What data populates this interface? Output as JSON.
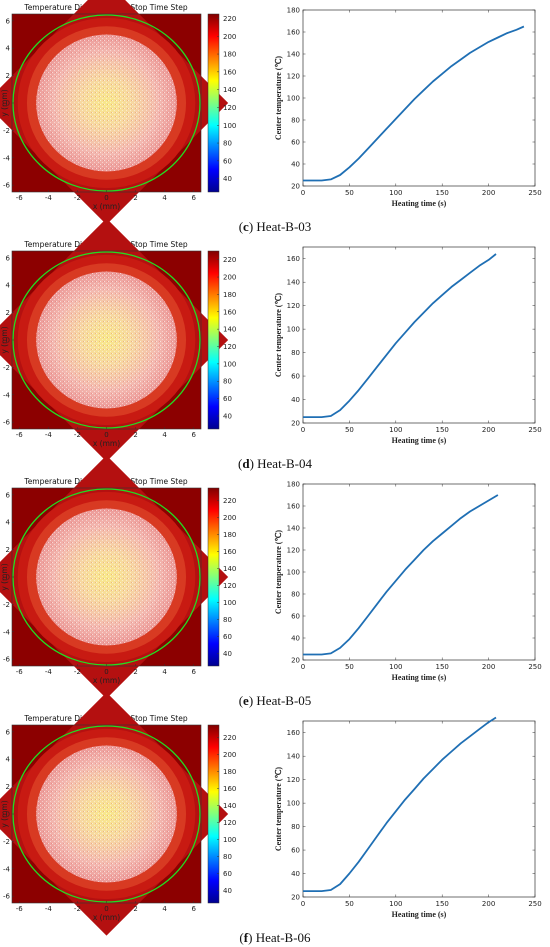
{
  "panels": [
    {
      "caption_letter": "c",
      "caption_text": " Heat-B-03",
      "heatmap": {
        "title": "Temperature Distribution at Stop Time Step",
        "xlabel": "x (mm)",
        "ylabel": "y (mm)",
        "xticks": [
          "-6",
          "-4",
          "-2",
          "0",
          "2",
          "4",
          "6"
        ],
        "yticks": [
          "6",
          "4",
          "2",
          "0",
          "-2",
          "-4",
          "-6"
        ],
        "colorbar_ticks": [
          "220",
          "200",
          "180",
          "160",
          "140",
          "120",
          "100",
          "80",
          "60",
          "40"
        ]
      },
      "curve": {
        "xlabel": "Heating time (s)",
        "ylabel": "Center temperature (℃)",
        "xticks": [
          "0",
          "50",
          "100",
          "150",
          "200",
          "250"
        ],
        "yticks": [
          "20",
          "40",
          "60",
          "80",
          "100",
          "120",
          "140",
          "160",
          "180"
        ]
      }
    },
    {
      "caption_letter": "d",
      "caption_text": " Heat-B-04",
      "heatmap": {
        "title": "Temperature Distribution at Stop Time Step",
        "xlabel": "x (mm)",
        "ylabel": "y (mm)",
        "xticks": [
          "-6",
          "-4",
          "-2",
          "0",
          "2",
          "4",
          "6"
        ],
        "yticks": [
          "6",
          "4",
          "2",
          "0",
          "-2",
          "-4",
          "-6"
        ],
        "colorbar_ticks": [
          "220",
          "200",
          "180",
          "160",
          "140",
          "120",
          "100",
          "80",
          "60",
          "40"
        ]
      },
      "curve": {
        "xlabel": "Heating time (s)",
        "ylabel": "Center temperature (℃)",
        "xticks": [
          "0",
          "50",
          "100",
          "150",
          "200",
          "250"
        ],
        "yticks": [
          "20",
          "40",
          "60",
          "80",
          "100",
          "120",
          "140",
          "160"
        ]
      }
    },
    {
      "caption_letter": "e",
      "caption_text": " Heat-B-05",
      "heatmap": {
        "title": "Temperature Distribution at Stop Time Step",
        "xlabel": "x (mm)",
        "ylabel": "y (mm)",
        "xticks": [
          "-6",
          "-4",
          "-2",
          "0",
          "2",
          "4",
          "6"
        ],
        "yticks": [
          "6",
          "4",
          "2",
          "0",
          "-2",
          "-4",
          "-6"
        ],
        "colorbar_ticks": [
          "220",
          "200",
          "180",
          "160",
          "140",
          "120",
          "100",
          "80",
          "60",
          "40"
        ]
      },
      "curve": {
        "xlabel": "Heating time (s)",
        "ylabel": "Center temperature (℃)",
        "xticks": [
          "0",
          "50",
          "100",
          "150",
          "200",
          "250"
        ],
        "yticks": [
          "20",
          "40",
          "60",
          "80",
          "100",
          "120",
          "140",
          "160",
          "180"
        ]
      }
    },
    {
      "caption_letter": "f",
      "caption_text": " Heat-B-06",
      "heatmap": {
        "title": "Temperature Distribution at Stop Time Step",
        "xlabel": "x (mm)",
        "ylabel": "y (mm)",
        "xticks": [
          "-6",
          "-4",
          "-2",
          "0",
          "2",
          "4",
          "6"
        ],
        "yticks": [
          "6",
          "4",
          "2",
          "0",
          "-2",
          "-4",
          "-6"
        ],
        "colorbar_ticks": [
          "220",
          "200",
          "180",
          "160",
          "140",
          "120",
          "100",
          "80",
          "60",
          "40"
        ]
      },
      "curve": {
        "xlabel": "Heating time (s)",
        "ylabel": "Center temperature (℃)",
        "xticks": [
          "0",
          "50",
          "100",
          "150",
          "200",
          "250"
        ],
        "yticks": [
          "20",
          "40",
          "60",
          "80",
          "100",
          "120",
          "140",
          "160"
        ]
      }
    }
  ],
  "chart_data": [
    {
      "type": "heatmap",
      "title": "Temperature Distribution at Stop Time Step",
      "xlabel": "x (mm)",
      "ylabel": "y (mm)",
      "xlim": [
        -6.5,
        6.5
      ],
      "ylim": [
        -6.5,
        6.5
      ],
      "colorbar_range": [
        25,
        225
      ],
      "colormap": "jet",
      "boundary_circle_color": "#22dd22"
    },
    {
      "type": "line",
      "xlabel": "Heating time (s)",
      "ylabel": "Center temperature (℃)",
      "xlim": [
        0,
        250
      ],
      "ylim": [
        20,
        180
      ],
      "line_color": "#1f6fb4",
      "x": [
        0,
        10,
        20,
        30,
        40,
        50,
        60,
        70,
        80,
        90,
        100,
        110,
        120,
        130,
        140,
        150,
        160,
        170,
        180,
        190,
        200,
        210,
        220,
        230,
        238
      ],
      "y": [
        25,
        25,
        25,
        26,
        30,
        37,
        45,
        54,
        63,
        72,
        81,
        90,
        99,
        107,
        115,
        122,
        129,
        135,
        141,
        146,
        151,
        155,
        159,
        162,
        165
      ]
    },
    {
      "type": "heatmap",
      "title": "Temperature Distribution at Stop Time Step",
      "xlabel": "x (mm)",
      "ylabel": "y (mm)",
      "xlim": [
        -6.5,
        6.5
      ],
      "ylim": [
        -6.5,
        6.5
      ],
      "colorbar_range": [
        25,
        230
      ],
      "colormap": "jet",
      "boundary_circle_color": "#22dd22"
    },
    {
      "type": "line",
      "xlabel": "Heating time (s)",
      "ylabel": "Center temperature (℃)",
      "xlim": [
        0,
        250
      ],
      "ylim": [
        20,
        170
      ],
      "line_color": "#1f6fb4",
      "x": [
        0,
        10,
        20,
        30,
        40,
        50,
        60,
        70,
        80,
        90,
        100,
        110,
        120,
        130,
        140,
        150,
        160,
        170,
        180,
        190,
        200,
        208
      ],
      "y": [
        25,
        25,
        25,
        26,
        31,
        39,
        48,
        58,
        68,
        78,
        88,
        97,
        106,
        114,
        122,
        129,
        136,
        142,
        148,
        154,
        159,
        164
      ]
    },
    {
      "type": "heatmap",
      "title": "Temperature Distribution at Stop Time Step",
      "xlabel": "x (mm)",
      "ylabel": "y (mm)",
      "xlim": [
        -6.5,
        6.5
      ],
      "ylim": [
        -6.5,
        6.5
      ],
      "colorbar_range": [
        25,
        235
      ],
      "colormap": "jet",
      "boundary_circle_color": "#22dd22"
    },
    {
      "type": "line",
      "xlabel": "Heating time (s)",
      "ylabel": "Center temperature (℃)",
      "xlim": [
        0,
        250
      ],
      "ylim": [
        20,
        180
      ],
      "line_color": "#1f6fb4",
      "x": [
        0,
        10,
        20,
        30,
        40,
        50,
        60,
        70,
        80,
        90,
        100,
        110,
        120,
        130,
        140,
        150,
        160,
        170,
        180,
        190,
        200,
        210
      ],
      "y": [
        25,
        25,
        25,
        26,
        31,
        39,
        49,
        60,
        71,
        82,
        92,
        102,
        111,
        120,
        128,
        135,
        142,
        149,
        155,
        160,
        165,
        170
      ]
    },
    {
      "type": "heatmap",
      "title": "Temperature Distribution at Stop Time Step",
      "xlabel": "x (mm)",
      "ylabel": "y (mm)",
      "xlim": [
        -6.5,
        6.5
      ],
      "ylim": [
        -6.5,
        6.5
      ],
      "colorbar_range": [
        25,
        235
      ],
      "colormap": "jet",
      "boundary_circle_color": "#22dd22"
    },
    {
      "type": "line",
      "xlabel": "Heating time (s)",
      "ylabel": "Center temperature (℃)",
      "xlim": [
        0,
        250
      ],
      "ylim": [
        20,
        170
      ],
      "line_color": "#1f6fb4",
      "x": [
        0,
        10,
        20,
        30,
        40,
        50,
        60,
        70,
        80,
        90,
        100,
        110,
        120,
        130,
        140,
        150,
        160,
        170,
        180,
        190,
        200,
        208
      ],
      "y": [
        25,
        25,
        25,
        26,
        31,
        40,
        50,
        61,
        72,
        83,
        93,
        103,
        112,
        121,
        129,
        137,
        144,
        151,
        157,
        163,
        169,
        173
      ]
    }
  ]
}
